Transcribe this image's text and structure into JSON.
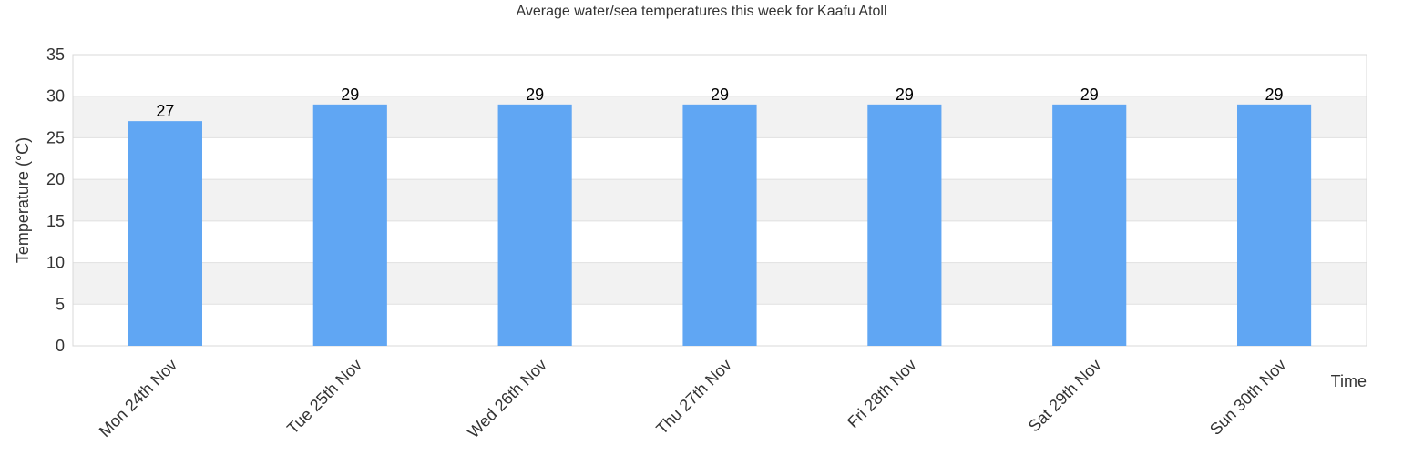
{
  "chart_data": {
    "type": "bar",
    "title": "Average water/sea temperatures this week for Kaafu Atoll",
    "xlabel": "Time",
    "ylabel": "Temperature (°C)",
    "categories": [
      "Mon 24th Nov",
      "Tue 25th Nov",
      "Wed 26th Nov",
      "Thu 27th Nov",
      "Fri 28th Nov",
      "Sat 29th Nov",
      "Sun 30th Nov"
    ],
    "values": [
      27,
      29,
      29,
      29,
      29,
      29,
      29
    ],
    "ylim": [
      0,
      35
    ],
    "yticks": [
      0,
      5,
      10,
      15,
      20,
      25,
      30,
      35
    ],
    "grid": true,
    "legend": "none",
    "colors": {
      "bar": "#60a6f3",
      "band": "#f2f2f2",
      "gridline": "#e0e0e0",
      "frame": "#d8d8d8",
      "text": "#333333",
      "data_label": "#000000"
    }
  }
}
